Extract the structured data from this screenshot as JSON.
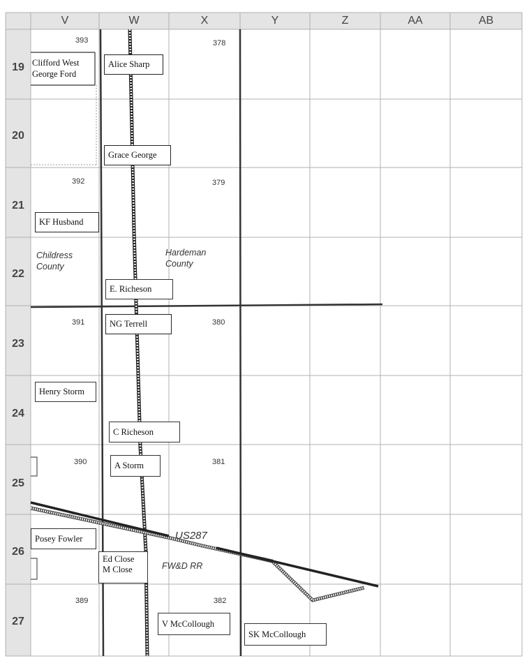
{
  "columns": [
    "V",
    "W",
    "X",
    "Y",
    "Z",
    "AA",
    "AB"
  ],
  "rows": [
    "19",
    "20",
    "21",
    "22",
    "23",
    "24",
    "25",
    "26",
    "27"
  ],
  "section_numbers": {
    "s393": "393",
    "s378": "378",
    "s392": "392",
    "s379": "379",
    "s391": "391",
    "s380": "380",
    "s390": "390",
    "s381": "381",
    "s389": "389",
    "s382": "382"
  },
  "owners": {
    "clifford_west": "Clifford West",
    "george_ford": "George Ford",
    "alice_sharp": "Alice Sharp",
    "grace_george": "Grace George",
    "kf_husband": "KF Husband",
    "e_richeson": "E. Richeson",
    "ng_terrell": "NG Terrell",
    "henry_storm": "Henry Storm",
    "c_richeson": "C Richeson",
    "a_storm": "A Storm",
    "posey_fowler": "Posey Fowler",
    "ed_close": "Ed Close",
    "m_close": "M Close",
    "v_mccollough": "V McCollough",
    "sk_mccollough": "SK McCollough"
  },
  "counties": {
    "childress_line1": "Childress",
    "childress_line2": "County",
    "hardeman_line1": "Hardeman",
    "hardeman_line2": "County"
  },
  "features": {
    "highway": "US287",
    "railroad": "FW&D RR"
  },
  "colors": {
    "grid": "#b0b0b0",
    "boundary": "#333333",
    "header_bg": "#e4e4e4"
  }
}
